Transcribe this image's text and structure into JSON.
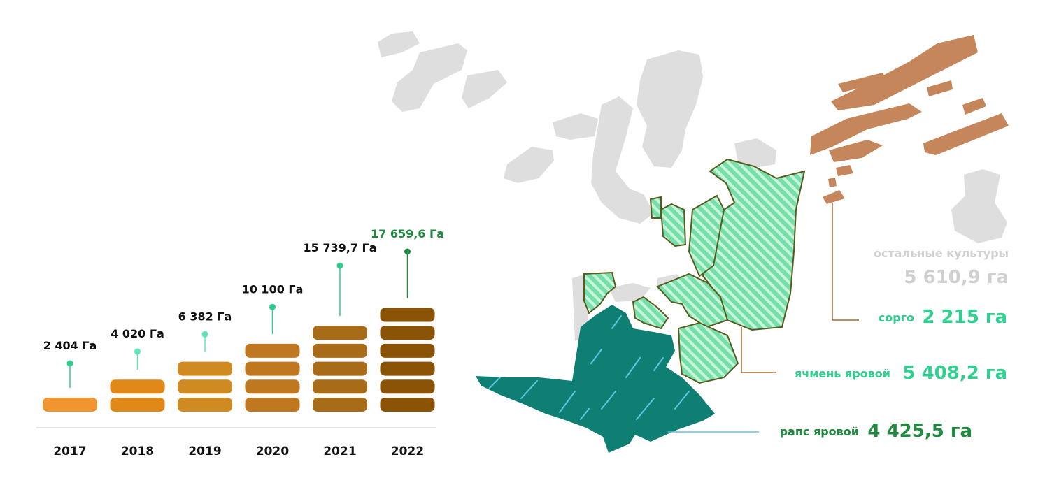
{
  "chart_data": [
    {
      "type": "bar",
      "categories": [
        "2017",
        "2018",
        "2019",
        "2020",
        "2021",
        "2022"
      ],
      "values": [
        2404,
        4020,
        6382,
        10100,
        15739.7,
        17659.6
      ],
      "value_labels": [
        "2 404 Га",
        "4 020 Га",
        "6 382 Га",
        "10 100 Га",
        "15 739,7 Га",
        "17 659,6 Га"
      ],
      "stack_blocks": [
        1,
        2,
        3,
        4,
        5,
        6
      ],
      "colors": [
        "#f0952f",
        "#e08818",
        "#d08a22",
        "#c07820",
        "#a86b17",
        "#8a5306"
      ],
      "dot_colors": [
        "#2ecc8f",
        "#5fe6b4",
        "#5fe6b4",
        "#2ecc8f",
        "#2ecc8f",
        "#1e8a3e"
      ],
      "highlight_color": "#1e8a3e",
      "xlabel": "",
      "ylabel": "",
      "grid": false
    },
    {
      "type": "map-legend",
      "items": [
        {
          "name": "остальные культуры",
          "value": "5 610,9 га",
          "color": "#d8d8d8"
        },
        {
          "name": "сорго",
          "value": "2 215 га",
          "color": "#2fd08e"
        },
        {
          "name": "ячмень яровой",
          "value": "5 408,2 га",
          "color": "#2fd08e"
        },
        {
          "name": "рапс яровой",
          "value": "4 425,5 га",
          "color": "#1e8a3e"
        }
      ],
      "field_colors": {
        "other": "#dedede",
        "sorghum": "#c4865a",
        "barley": "#74e0a8",
        "rapeseed": "#0f7f73"
      }
    }
  ]
}
